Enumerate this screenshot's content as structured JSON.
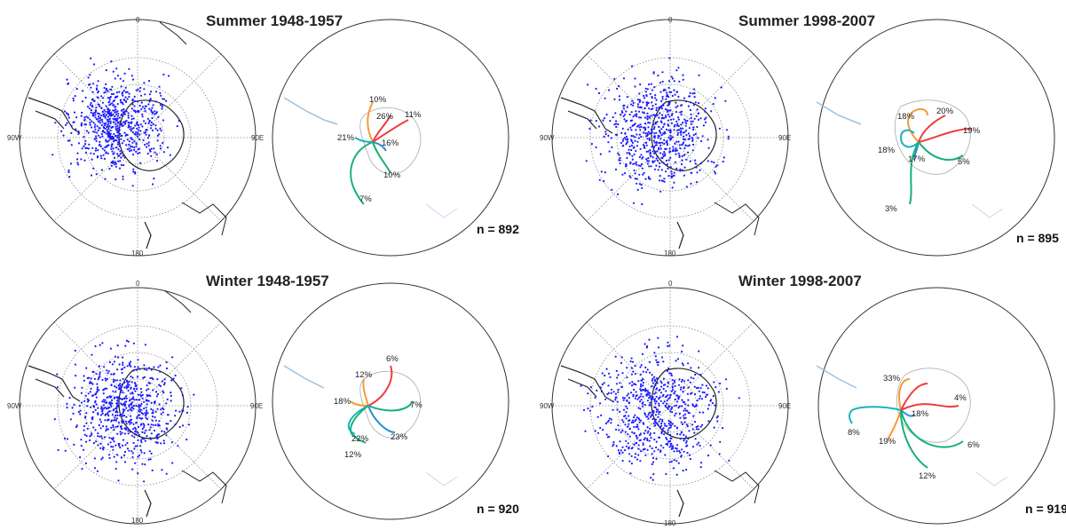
{
  "colors": {
    "dots": "#1a1aff",
    "red": "#f03c3c",
    "orange": "#f59a3a",
    "teal": "#17b3c0",
    "green": "#16b07a",
    "blue": "#2f8fd0",
    "coast": "#222222"
  },
  "axis_labels": {
    "top": "0",
    "left": "90W",
    "right": "90E",
    "bottom": "180"
  },
  "panels": [
    {
      "title": "Summer 1948-1957",
      "n": "n = 892",
      "tracks": [
        {
          "pct": "10%",
          "color": "orange"
        },
        {
          "pct": "26%",
          "color": "red"
        },
        {
          "pct": "11%",
          "color": "red"
        },
        {
          "pct": "21%",
          "color": "teal"
        },
        {
          "pct": "16%",
          "color": "blue"
        },
        {
          "pct": "10%",
          "color": "green"
        },
        {
          "pct": "7%",
          "color": "green"
        }
      ]
    },
    {
      "title": "Summer 1998-2007",
      "n": "n = 895",
      "tracks": [
        {
          "pct": "18%",
          "color": "orange"
        },
        {
          "pct": "20%",
          "color": "red"
        },
        {
          "pct": "19%",
          "color": "red"
        },
        {
          "pct": "18%",
          "color": "teal"
        },
        {
          "pct": "17%",
          "color": "blue"
        },
        {
          "pct": "5%",
          "color": "green"
        },
        {
          "pct": "3%",
          "color": "green"
        }
      ]
    },
    {
      "title": "Winter 1948-1957",
      "n": "n = 920",
      "tracks": [
        {
          "pct": "6%",
          "color": "red"
        },
        {
          "pct": "12%",
          "color": "orange"
        },
        {
          "pct": "18%",
          "color": "orange"
        },
        {
          "pct": "7%",
          "color": "green"
        },
        {
          "pct": "22%",
          "color": "teal"
        },
        {
          "pct": "23%",
          "color": "blue"
        },
        {
          "pct": "12%",
          "color": "green"
        }
      ]
    },
    {
      "title": "Winter 1998-2007",
      "n": "n = 919",
      "tracks": [
        {
          "pct": "33%",
          "color": "orange"
        },
        {
          "pct": "4%",
          "color": "red"
        },
        {
          "pct": "18%",
          "color": "blue"
        },
        {
          "pct": "8%",
          "color": "teal"
        },
        {
          "pct": "19%",
          "color": "orange"
        },
        {
          "pct": "6%",
          "color": "green"
        },
        {
          "pct": "12%",
          "color": "green"
        }
      ]
    }
  ]
}
